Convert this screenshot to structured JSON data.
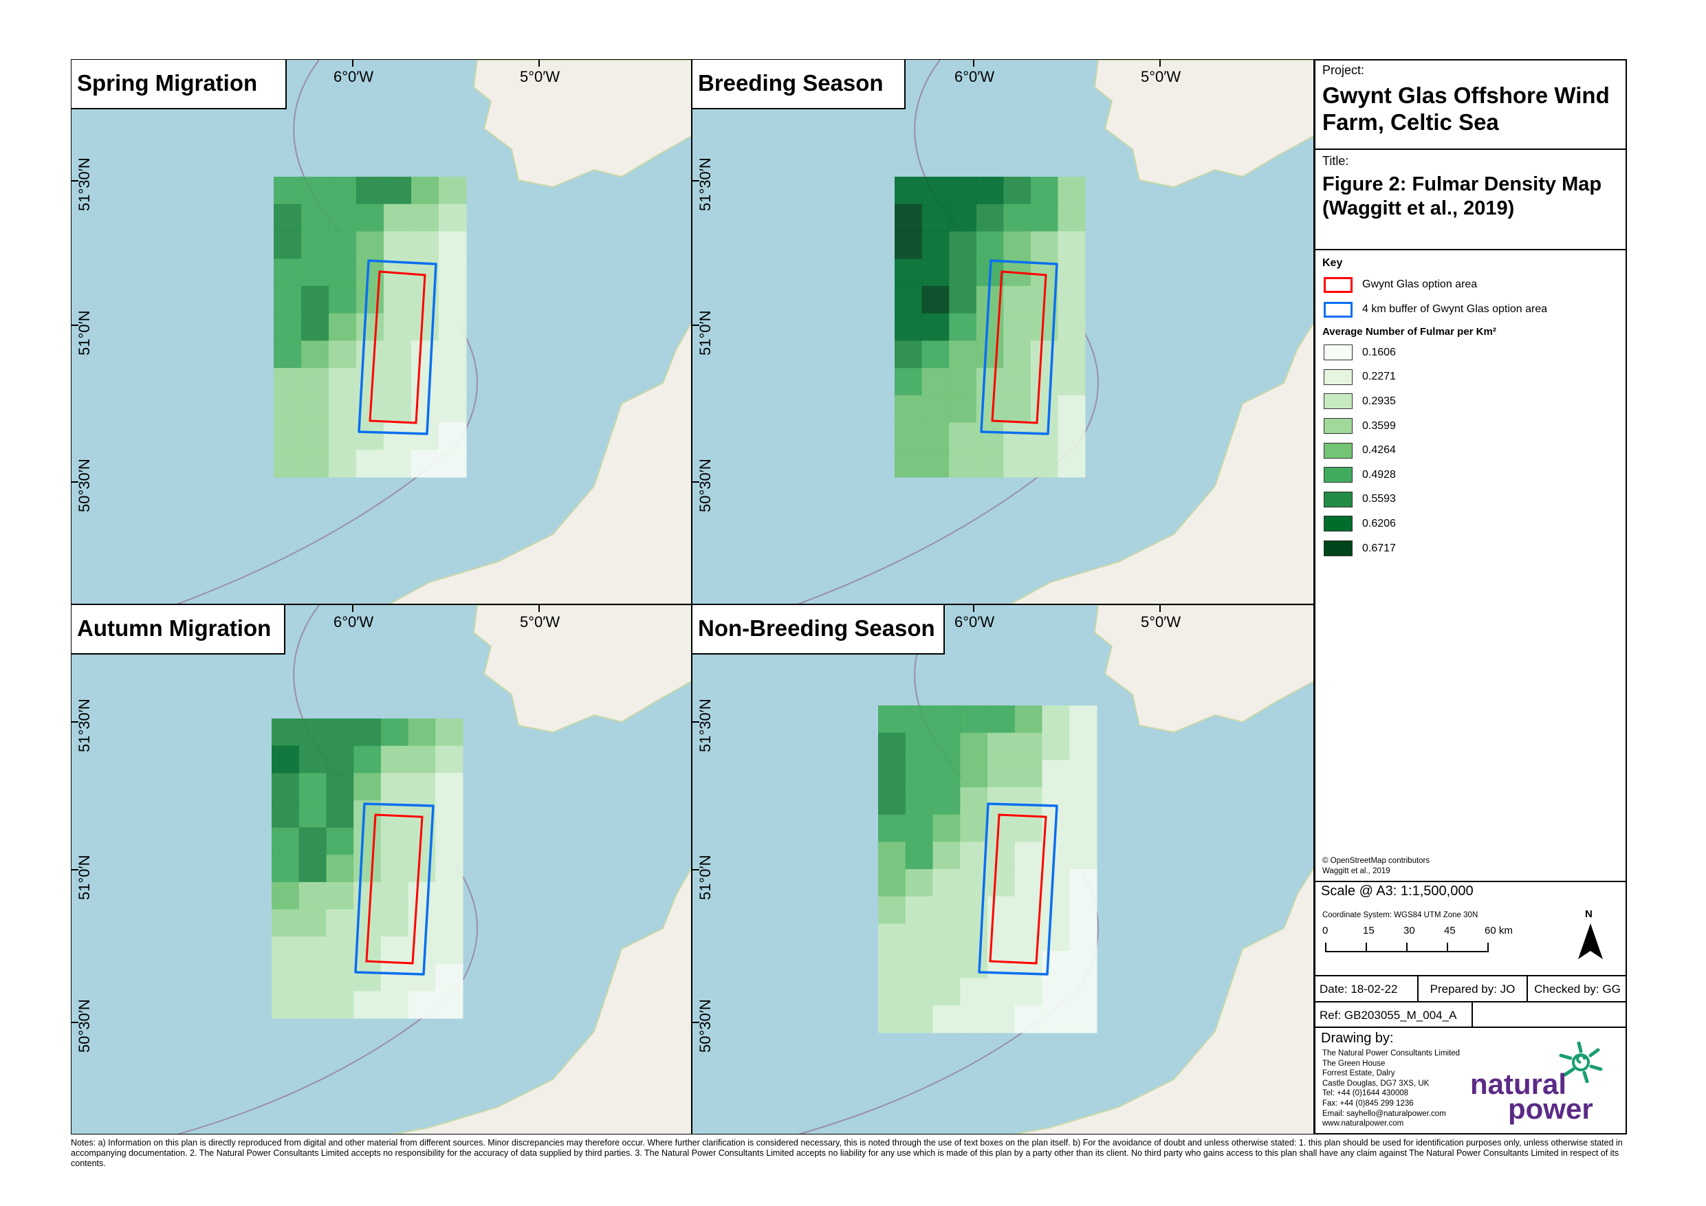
{
  "legend_colors": [
    "#f7fcf5",
    "#e5f5e0",
    "#c7e9c0",
    "#a1d99b",
    "#74c476",
    "#41ab5d",
    "#238b45",
    "#006d2c",
    "#00441b"
  ],
  "option_area_color": "#ff0000",
  "buffer_color": "#0a6ff0",
  "maps": [
    {
      "title": "Spring Migration",
      "lon_labels": [
        "6°0′W",
        "5°0′W"
      ],
      "lat_labels": [
        "51°30′N",
        "51°0′N",
        "50°30′N"
      ],
      "grid": [
        [
          5,
          5,
          5,
          6,
          6,
          4,
          3
        ],
        [
          6,
          5,
          5,
          5,
          3,
          3,
          2
        ],
        [
          6,
          5,
          5,
          4,
          2,
          2,
          1
        ],
        [
          5,
          5,
          5,
          4,
          2,
          2,
          1
        ],
        [
          5,
          6,
          5,
          4,
          2,
          2,
          1
        ],
        [
          5,
          6,
          4,
          3,
          2,
          2,
          1
        ],
        [
          5,
          4,
          3,
          2,
          2,
          1,
          1
        ],
        [
          3,
          3,
          2,
          2,
          2,
          1,
          1
        ],
        [
          3,
          3,
          2,
          2,
          2,
          1,
          1
        ],
        [
          3,
          3,
          2,
          2,
          1,
          1,
          0
        ],
        [
          3,
          3,
          2,
          1,
          1,
          0,
          0
        ]
      ]
    },
    {
      "title": "Breeding Season",
      "lon_labels": [
        "6°0′W",
        "5°0′W"
      ],
      "lat_labels": [
        "51°30′N",
        "51°0′N",
        "50°30′N"
      ],
      "grid": [
        [
          7,
          7,
          7,
          7,
          6,
          5,
          3
        ],
        [
          8,
          7,
          7,
          6,
          5,
          5,
          3
        ],
        [
          8,
          7,
          6,
          5,
          4,
          3,
          2
        ],
        [
          7,
          7,
          6,
          5,
          4,
          3,
          2
        ],
        [
          7,
          8,
          6,
          4,
          3,
          3,
          2
        ],
        [
          7,
          7,
          5,
          4,
          3,
          3,
          2
        ],
        [
          6,
          5,
          4,
          4,
          3,
          2,
          2
        ],
        [
          5,
          4,
          4,
          3,
          3,
          2,
          2
        ],
        [
          4,
          4,
          4,
          3,
          3,
          2,
          1
        ],
        [
          4,
          4,
          3,
          3,
          2,
          2,
          1
        ],
        [
          4,
          4,
          3,
          3,
          2,
          2,
          1
        ]
      ]
    },
    {
      "title": "Autumn Migration",
      "lon_labels": [
        "6°0′W",
        "5°0′W"
      ],
      "lat_labels": [
        "51°30′N",
        "51°0′N",
        "50°30′N"
      ],
      "grid": [
        [
          6,
          6,
          6,
          6,
          5,
          4,
          3
        ],
        [
          7,
          6,
          6,
          5,
          3,
          3,
          2
        ],
        [
          6,
          5,
          6,
          4,
          2,
          2,
          1
        ],
        [
          6,
          5,
          6,
          3,
          2,
          2,
          1
        ],
        [
          5,
          6,
          5,
          3,
          2,
          2,
          1
        ],
        [
          5,
          6,
          4,
          3,
          2,
          2,
          1
        ],
        [
          4,
          3,
          3,
          2,
          2,
          1,
          1
        ],
        [
          3,
          3,
          2,
          2,
          2,
          1,
          1
        ],
        [
          2,
          2,
          2,
          2,
          1,
          1,
          1
        ],
        [
          2,
          2,
          2,
          2,
          1,
          1,
          0
        ],
        [
          2,
          2,
          2,
          1,
          1,
          0,
          0
        ]
      ]
    },
    {
      "title": "Non-Breeding Season",
      "lon_labels": [
        "6°0′W",
        "5°0′W"
      ],
      "lat_labels": [
        "51°30′N",
        "51°0′N",
        "50°30′N"
      ],
      "grid": [
        [
          5,
          5,
          5,
          5,
          5,
          4,
          2,
          1
        ],
        [
          6,
          5,
          5,
          4,
          3,
          3,
          2,
          1
        ],
        [
          6,
          5,
          5,
          4,
          3,
          3,
          1,
          1
        ],
        [
          6,
          5,
          5,
          3,
          2,
          2,
          1,
          1
        ],
        [
          5,
          5,
          4,
          3,
          2,
          2,
          1,
          1
        ],
        [
          4,
          5,
          3,
          2,
          2,
          1,
          1,
          1
        ],
        [
          4,
          3,
          2,
          2,
          2,
          1,
          1,
          0
        ],
        [
          3,
          2,
          2,
          2,
          1,
          1,
          1,
          0
        ],
        [
          2,
          2,
          2,
          2,
          1,
          1,
          1,
          0
        ],
        [
          2,
          2,
          2,
          2,
          1,
          1,
          0,
          0
        ],
        [
          2,
          2,
          2,
          1,
          1,
          1,
          0,
          0
        ],
        [
          2,
          2,
          1,
          1,
          1,
          0,
          0,
          0
        ]
      ]
    }
  ],
  "panel": {
    "project_label": "Project:",
    "project": "Gwynt Glas Offshore Wind Farm, Celtic Sea",
    "title_label": "Title:",
    "title": "Figure 2: Fulmar Density Map (Waggitt et al., 2019)",
    "key_label": "Key",
    "key_items": [
      "Gwynt Glas option area",
      "4 km buffer of Gwynt Glas option area"
    ],
    "density_heading": "Average Number of Fulmar per Km²",
    "density_classes": [
      "0.1606",
      "0.2271",
      "0.2935",
      "0.3599",
      "0.4264",
      "0.4928",
      "0.5593",
      "0.6206",
      "0.6717"
    ],
    "credits": [
      "© OpenStreetMap contributors",
      "Waggitt et al., 2019"
    ],
    "scale": "Scale @ A3: 1:1,500,000",
    "crs": "Coordinate System: WGS84 UTM Zone 30N",
    "scalebar_labels": [
      "0",
      "15",
      "30",
      "45",
      "60 km"
    ],
    "north": "N",
    "date": "Date: 18-02-22",
    "prepared": "Prepared by: JO",
    "checked": "Checked by: GG",
    "ref": "Ref: GB203055_M_004_A",
    "drawing_by": "Drawing by:",
    "address": [
      "The Natural Power Consultants Limited",
      "The Green House",
      "Forrest Estate, Dalry",
      "Castle Douglas, DG7 3XS, UK",
      "Tel: +44 (0)1644 430008",
      "Fax: +44 (0)845 299 1236",
      "Email: sayhello@naturalpower.com",
      "www.naturalpower.com"
    ],
    "logo_text": [
      "natural",
      "power"
    ]
  },
  "notes": "Notes: a) Information on this plan is directly reproduced from digital and other material from different sources. Minor discrepancies may therefore occur. Where further clarification is considered necessary, this is noted through the use of text boxes on the plan itself. b) For the avoidance of doubt and unless otherwise stated: 1. this plan should be used for identification purposes only, unless otherwise stated in accompanying documentation. 2. The Natural Power Consultants Limited accepts no responsibility for the accuracy of data supplied by third parties. 3. The Natural Power Consultants Limited accepts no liability for any use which is made of this plan by a party other than its client. No third party who gains access to this plan shall have any claim against The Natural Power Consultants Limited in respect of its contents."
}
